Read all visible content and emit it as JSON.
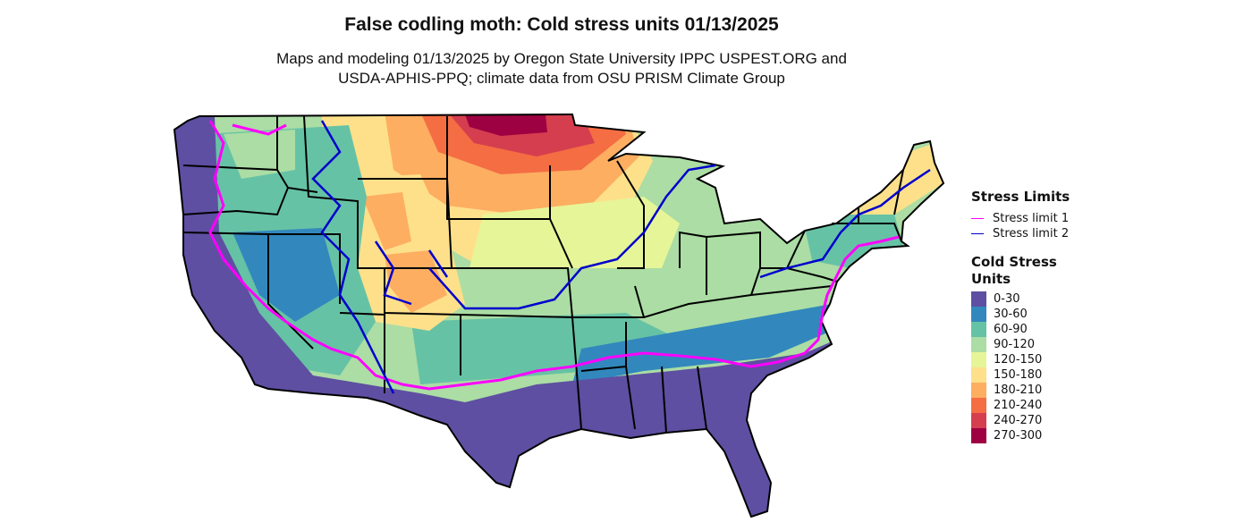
{
  "title": "False codling moth: Cold stress units 01/13/2025",
  "subtitle_line1": "Maps and modeling 01/13/2025 by Oregon State University IPPC USPEST.ORG and",
  "subtitle_line2": "USDA-APHIS-PPQ; climate data from OSU PRISM Climate Group",
  "map": {
    "region": "Contiguous United States",
    "state_border_color": "#000000",
    "stress_limit_1_color": "#ff00ff",
    "stress_limit_2_color": "#0000cc"
  },
  "legend": {
    "stress_limits_title": "Stress Limits",
    "stress_limits": [
      {
        "label": "Stress limit 1",
        "color": "#ff00ff"
      },
      {
        "label": "Stress limit 2",
        "color": "#0000cc"
      }
    ],
    "csu_title_line1": "Cold Stress",
    "csu_title_line2": "Units",
    "classes": [
      {
        "label": "0-30",
        "color": "#5e4fa2"
      },
      {
        "label": "30-60",
        "color": "#3288bd"
      },
      {
        "label": "60-90",
        "color": "#66c2a5"
      },
      {
        "label": "90-120",
        "color": "#abdda4"
      },
      {
        "label": "120-150",
        "color": "#e6f598"
      },
      {
        "label": "150-180",
        "color": "#fee08b"
      },
      {
        "label": "180-210",
        "color": "#fdae61"
      },
      {
        "label": "210-240",
        "color": "#f46d43"
      },
      {
        "label": "240-270",
        "color": "#d53e4f"
      },
      {
        "label": "270-300",
        "color": "#9e0142"
      }
    ]
  }
}
